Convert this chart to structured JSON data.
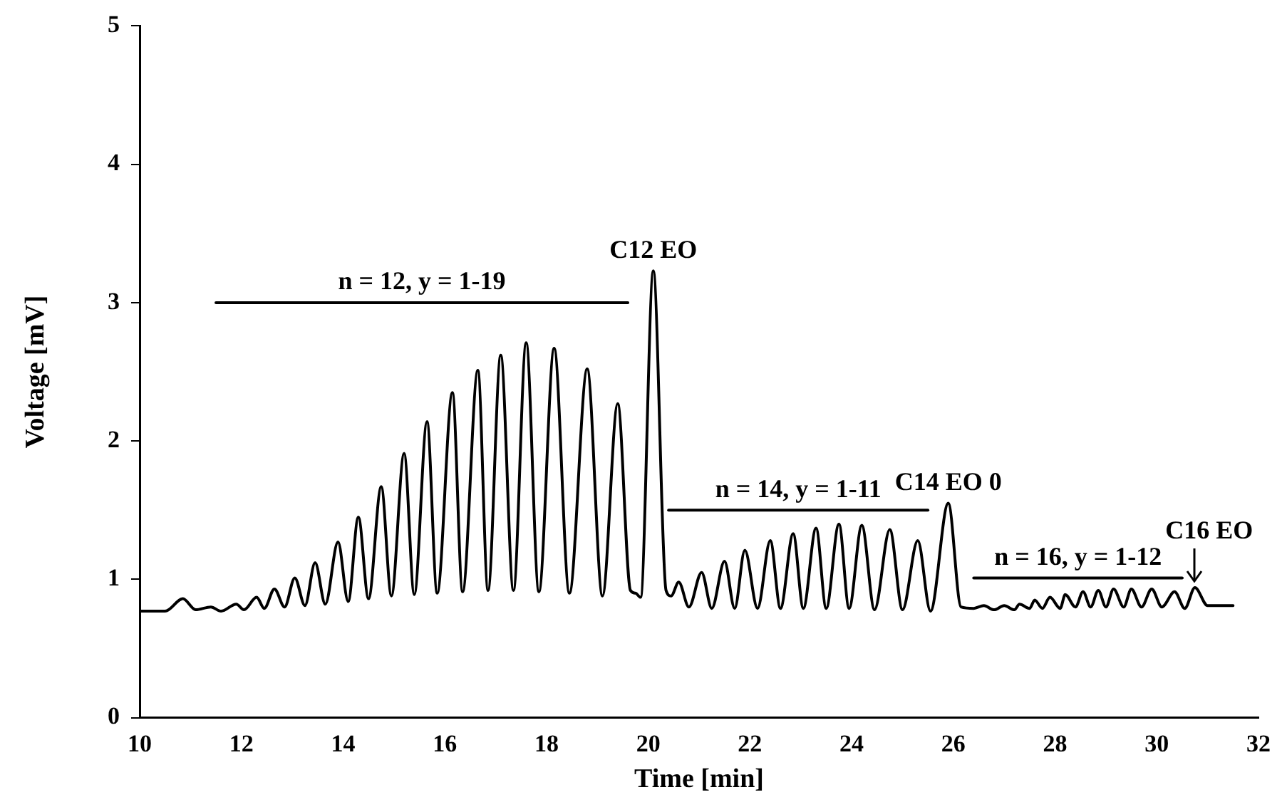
{
  "chart_data": {
    "type": "line",
    "xlabel": "Time [min]",
    "ylabel": "Voltage [mV]",
    "xlim": [
      10,
      32
    ],
    "xticks": [
      10,
      12,
      14,
      16,
      18,
      20,
      22,
      24,
      26,
      28,
      30,
      32
    ],
    "ylim": [
      0,
      5
    ],
    "yticks": [
      0,
      1,
      2,
      3,
      4,
      5
    ],
    "grid": false,
    "legend": false,
    "marker": "none",
    "line_style": "solid",
    "series": [
      {
        "color": "#000000",
        "x": [
          10,
          10.5,
          10.85,
          11.1,
          11.4,
          11.6,
          11.9,
          12.05,
          12.3,
          12.45,
          12.65,
          12.85,
          13.05,
          13.25,
          13.45,
          13.65,
          13.9,
          14.1,
          14.3,
          14.5,
          14.75,
          14.95,
          15.2,
          15.4,
          15.65,
          15.85,
          16.15,
          16.35,
          16.65,
          16.85,
          17.1,
          17.35,
          17.6,
          17.85,
          18.15,
          18.45,
          18.8,
          19.1,
          19.4,
          19.65,
          19.75,
          19.85,
          20.1,
          20.35,
          20.45,
          20.6,
          20.8,
          21.05,
          21.25,
          21.5,
          21.7,
          21.9,
          22.15,
          22.4,
          22.6,
          22.85,
          23.05,
          23.3,
          23.5,
          23.75,
          23.95,
          24.2,
          24.45,
          24.75,
          25.0,
          25.3,
          25.55,
          25.9,
          26.15,
          26.4,
          26.6,
          26.8,
          27.0,
          27.2,
          27.3,
          27.5,
          27.6,
          27.75,
          27.9,
          28.1,
          28.2,
          28.4,
          28.55,
          28.7,
          28.85,
          29.0,
          29.15,
          29.35,
          29.5,
          29.7,
          29.9,
          30.1,
          30.35,
          30.55,
          30.75,
          31.0,
          31.5
        ],
        "values": [
          0.77,
          0.77,
          0.86,
          0.78,
          0.8,
          0.77,
          0.82,
          0.78,
          0.87,
          0.79,
          0.93,
          0.8,
          1.01,
          0.81,
          1.12,
          0.82,
          1.27,
          0.84,
          1.45,
          0.86,
          1.67,
          0.88,
          1.91,
          0.89,
          2.14,
          0.9,
          2.35,
          0.91,
          2.51,
          0.92,
          2.62,
          0.92,
          2.71,
          0.91,
          2.67,
          0.9,
          2.52,
          0.88,
          2.27,
          0.92,
          0.9,
          0.87,
          3.23,
          0.92,
          0.88,
          0.98,
          0.8,
          1.05,
          0.79,
          1.13,
          0.79,
          1.21,
          0.79,
          1.28,
          0.79,
          1.33,
          0.79,
          1.37,
          0.79,
          1.4,
          0.79,
          1.39,
          0.78,
          1.36,
          0.78,
          1.28,
          0.77,
          1.55,
          0.8,
          0.79,
          0.81,
          0.78,
          0.81,
          0.78,
          0.82,
          0.79,
          0.85,
          0.79,
          0.87,
          0.79,
          0.89,
          0.8,
          0.91,
          0.8,
          0.92,
          0.8,
          0.93,
          0.8,
          0.93,
          0.8,
          0.93,
          0.8,
          0.91,
          0.79,
          0.94,
          0.81,
          0.81
        ]
      },
      {
        "color": "#000000",
        "x": [
          11.5,
          19.6
        ],
        "values": [
          3,
          3
        ]
      },
      {
        "color": "#000000",
        "x": [
          20.4,
          25.5
        ],
        "values": [
          1.5,
          1.5
        ]
      },
      {
        "color": "#000000",
        "x": [
          26.4,
          30.5
        ],
        "values": [
          1.01,
          1.01
        ]
      }
    ],
    "annotations": [
      {
        "text": "n = 12, y = 1-19",
        "x": 15.55,
        "y": 3
      },
      {
        "text": "C12 EO",
        "x": 20.1,
        "y": 3.23
      },
      {
        "text": "n = 14, y = 1-11",
        "x": 22.95,
        "y": 1.5
      },
      {
        "text": "C14 EO 0",
        "x": 25.9,
        "y": 1.55
      },
      {
        "text": "n = 16, y = 1-12",
        "x": 28.45,
        "y": 1.01
      },
      {
        "text": "C16 EO",
        "x": 30.75,
        "y": 0.94
      }
    ]
  }
}
